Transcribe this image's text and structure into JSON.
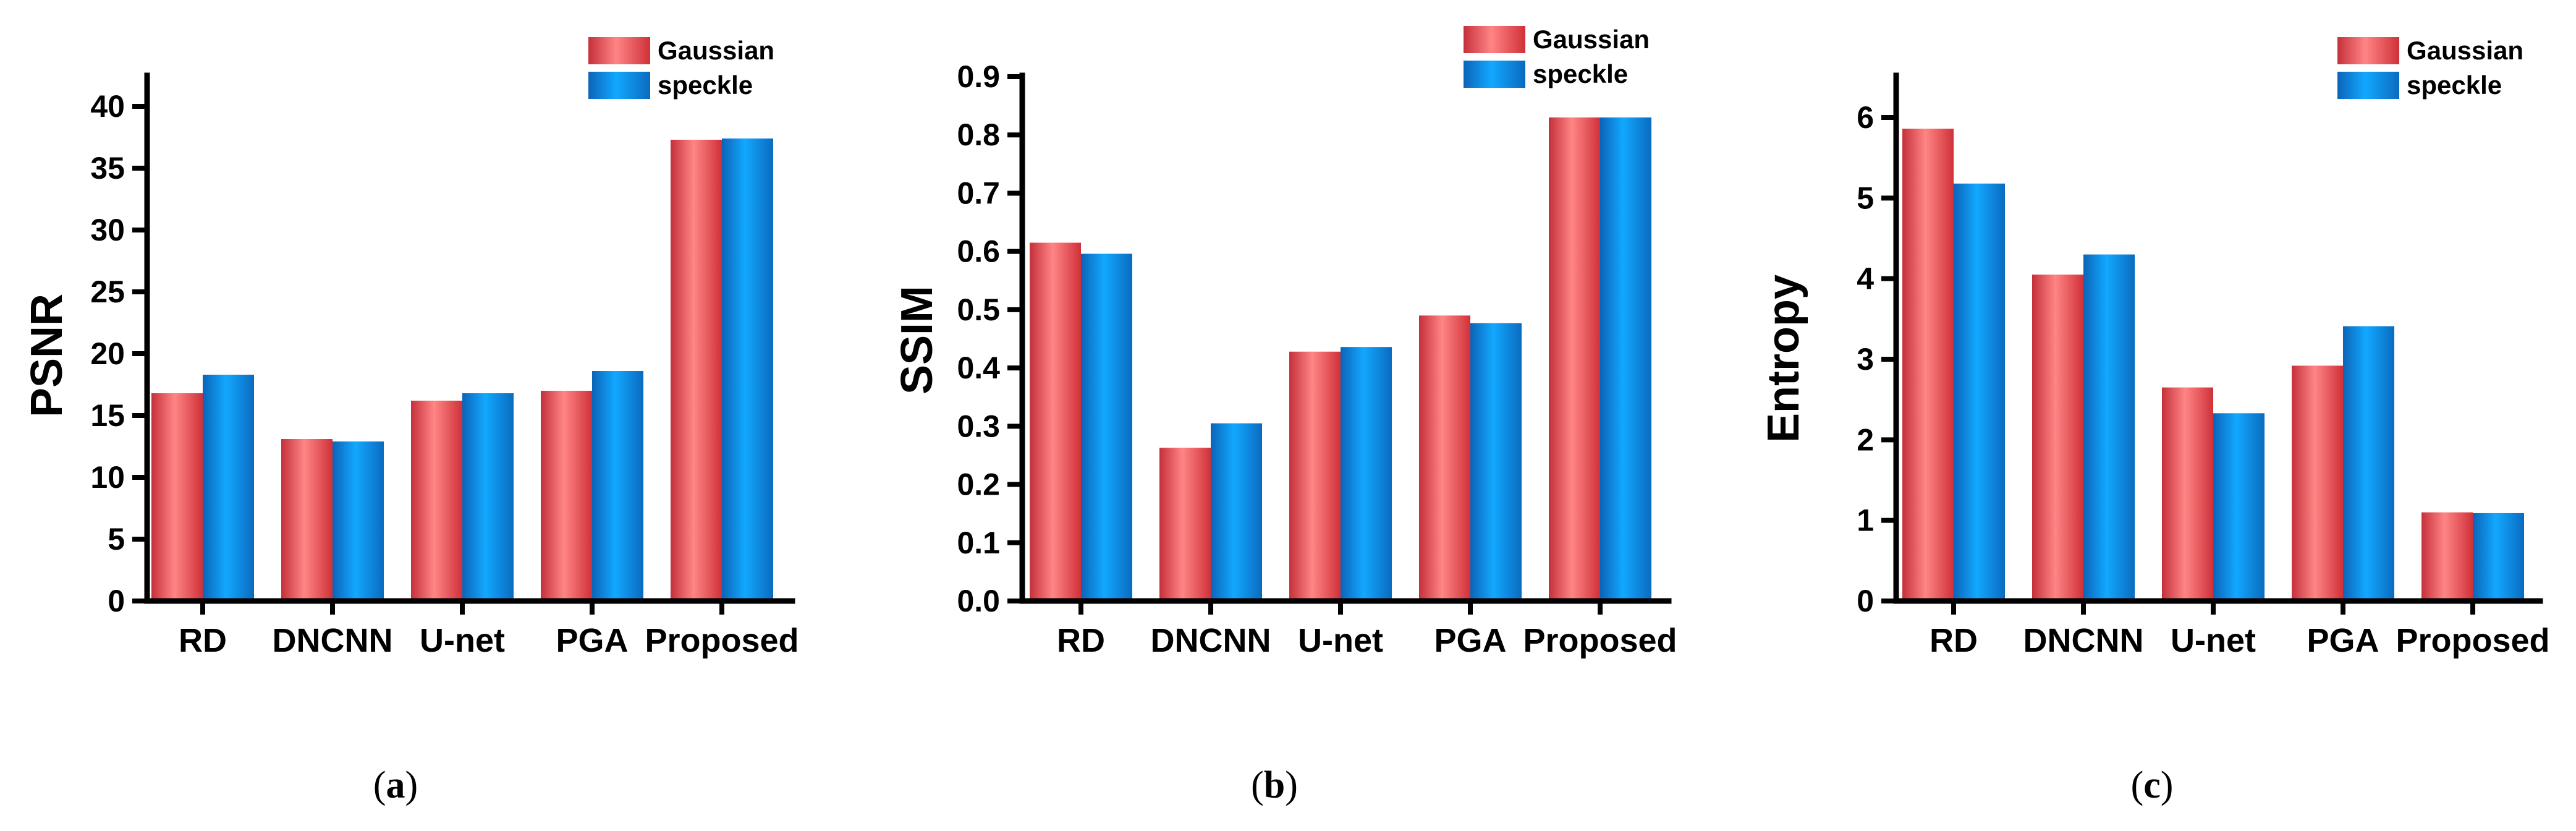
{
  "chart_data": [
    {
      "type": "bar",
      "panel": "a",
      "caption_letter": "a",
      "ylabel": "PSNR",
      "xlabel": "",
      "ylim": [
        0,
        42
      ],
      "yticks": [
        0,
        5,
        10,
        15,
        20,
        25,
        30,
        35,
        40
      ],
      "ytick_labels": [
        "0",
        "5",
        "10",
        "15",
        "20",
        "25",
        "30",
        "35",
        "40"
      ],
      "categories": [
        "RD",
        "DNCNN",
        "U-net",
        "PGA",
        "Proposed"
      ],
      "series": [
        {
          "name": "Gaussian",
          "color": "#e8474b",
          "values": [
            16.8,
            13.1,
            16.2,
            17.0,
            37.3
          ]
        },
        {
          "name": "speckle",
          "color": "#0b8ee2",
          "values": [
            18.3,
            12.9,
            16.8,
            18.6,
            37.4
          ]
        }
      ],
      "legend_position": "top-right"
    },
    {
      "type": "bar",
      "panel": "b",
      "caption_letter": "b",
      "ylabel": "SSIM",
      "xlabel": "",
      "ylim": [
        0,
        0.9
      ],
      "yticks": [
        0,
        0.1,
        0.2,
        0.3,
        0.4,
        0.5,
        0.6,
        0.7,
        0.8,
        0.9
      ],
      "ytick_labels": [
        "0.0",
        "0.1",
        "0.2",
        "0.3",
        "0.4",
        "0.5",
        "0.6",
        "0.7",
        "0.8",
        "0.9"
      ],
      "categories": [
        "RD",
        "DNCNN",
        "U-net",
        "PGA",
        "Proposed"
      ],
      "series": [
        {
          "name": "Gaussian",
          "color": "#e8474b",
          "values": [
            0.615,
            0.263,
            0.428,
            0.49,
            0.83
          ]
        },
        {
          "name": "speckle",
          "color": "#0b8ee2",
          "values": [
            0.596,
            0.305,
            0.436,
            0.477,
            0.83
          ]
        }
      ],
      "legend_position": "top-right"
    },
    {
      "type": "bar",
      "panel": "c",
      "caption_letter": "c",
      "ylabel": "Entropy",
      "xlabel": "",
      "ylim": [
        0,
        6.5
      ],
      "yticks": [
        0,
        1,
        2,
        3,
        4,
        5,
        6
      ],
      "ytick_labels": [
        "0",
        "1",
        "2",
        "3",
        "4",
        "5",
        "6"
      ],
      "categories": [
        "RD",
        "DNCNN",
        "U-net",
        "PGA",
        "Proposed"
      ],
      "series": [
        {
          "name": "Gaussian",
          "color": "#e8474b",
          "values": [
            5.86,
            4.05,
            2.65,
            2.92,
            1.1
          ]
        },
        {
          "name": "speckle",
          "color": "#0b8ee2",
          "values": [
            5.18,
            4.3,
            2.33,
            3.41,
            1.09
          ]
        }
      ],
      "legend_position": "top-right"
    }
  ]
}
